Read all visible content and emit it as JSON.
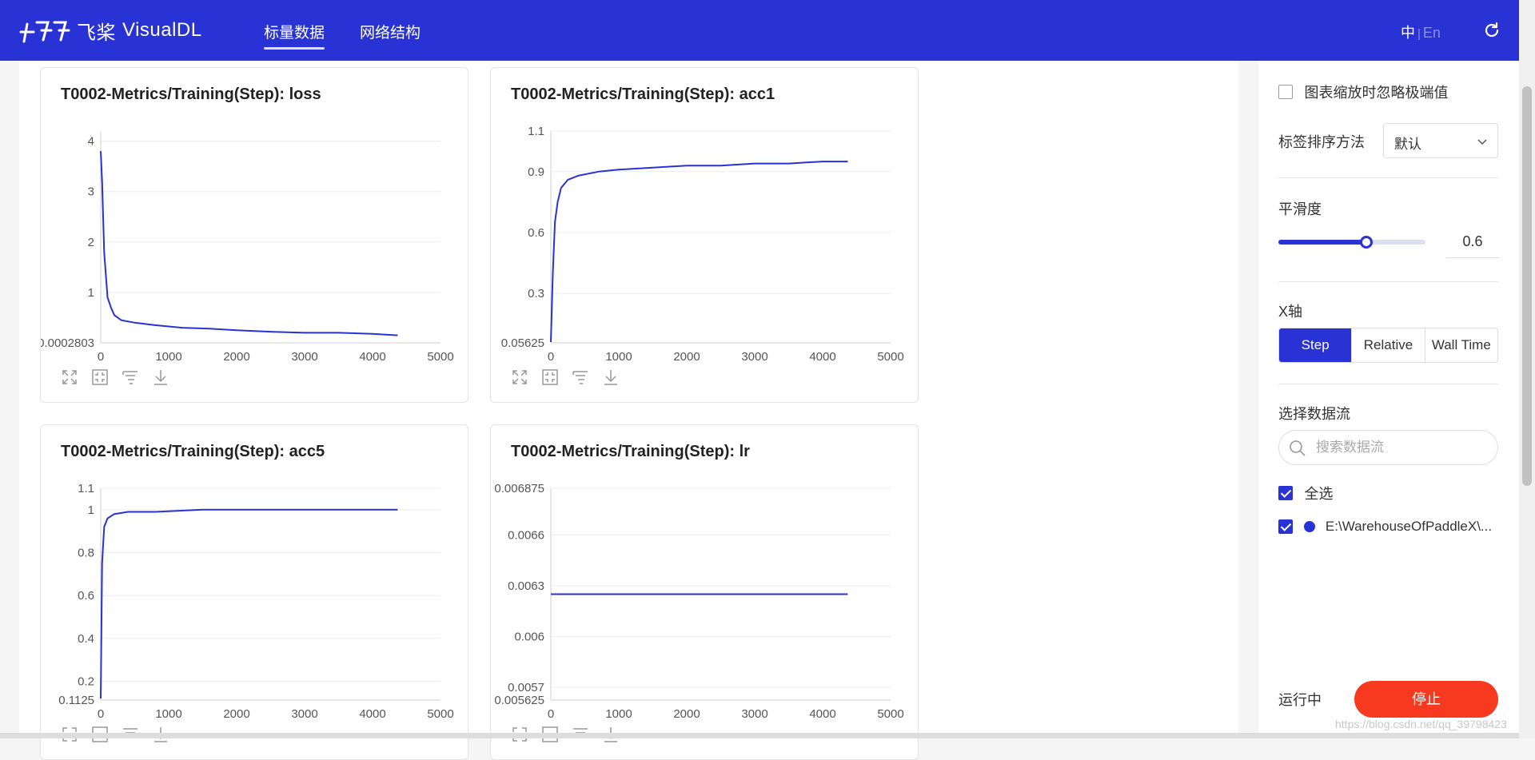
{
  "header": {
    "brand_cn": "飞桨",
    "brand_en": "VisualDL",
    "tabs": [
      {
        "label": "标量数据",
        "active": true
      },
      {
        "label": "网络结构",
        "active": false
      }
    ],
    "lang_zh": "中",
    "lang_sep": "|",
    "lang_en": "En",
    "accent_color": "#2932d4"
  },
  "cards": [
    {
      "title": "T0002-Metrics/Training(Step): loss"
    },
    {
      "title": "T0002-Metrics/Training(Step): acc1"
    },
    {
      "title": "T0002-Metrics/Training(Step): acc5"
    },
    {
      "title": "T0002-Metrics/Training(Step): lr"
    }
  ],
  "chart_data": [
    {
      "type": "line",
      "title": "T0002-Metrics/Training(Step): loss",
      "xlim": [
        0,
        5000
      ],
      "ylim": [
        0.0002803,
        4.2
      ],
      "xticks": [
        "0",
        "1000",
        "2000",
        "3000",
        "4000",
        "5000"
      ],
      "yticks": [
        {
          "v": 4,
          "l": "4"
        },
        {
          "v": 3,
          "l": "3"
        },
        {
          "v": 2,
          "l": "2"
        },
        {
          "v": 1,
          "l": "1"
        },
        {
          "v": 0.0002803,
          "l": "0.0002803"
        }
      ],
      "series": [
        {
          "x": [
            0,
            20,
            50,
            100,
            150,
            200,
            300,
            500,
            800,
            1200,
            1600,
            2000,
            2500,
            3000,
            3500,
            4000,
            4370
          ],
          "y": [
            3.8,
            3.2,
            1.8,
            0.9,
            0.7,
            0.55,
            0.45,
            0.4,
            0.35,
            0.3,
            0.28,
            0.25,
            0.22,
            0.2,
            0.2,
            0.18,
            0.15
          ]
        }
      ]
    },
    {
      "type": "line",
      "title": "T0002-Metrics/Training(Step): acc1",
      "xlim": [
        0,
        5000
      ],
      "ylim": [
        0.05625,
        1.1
      ],
      "xticks": [
        "0",
        "1000",
        "2000",
        "3000",
        "4000",
        "5000"
      ],
      "yticks": [
        {
          "v": 1.1,
          "l": "1.1"
        },
        {
          "v": 0.9,
          "l": "0.9"
        },
        {
          "v": 0.6,
          "l": "0.6"
        },
        {
          "v": 0.3,
          "l": "0.3"
        },
        {
          "v": 0.05625,
          "l": "0.05625"
        }
      ],
      "series": [
        {
          "x": [
            0,
            30,
            60,
            100,
            150,
            250,
            400,
            700,
            1000,
            1500,
            2000,
            2500,
            3000,
            3500,
            4000,
            4370
          ],
          "y": [
            0.06,
            0.4,
            0.65,
            0.75,
            0.82,
            0.86,
            0.88,
            0.9,
            0.91,
            0.92,
            0.93,
            0.93,
            0.94,
            0.94,
            0.95,
            0.95
          ]
        }
      ]
    },
    {
      "type": "line",
      "title": "T0002-Metrics/Training(Step): acc5",
      "xlim": [
        0,
        5000
      ],
      "ylim": [
        0.1125,
        1.1
      ],
      "xticks": [
        "0",
        "1000",
        "2000",
        "3000",
        "4000",
        "5000"
      ],
      "yticks": [
        {
          "v": 1.1,
          "l": "1.1"
        },
        {
          "v": 1,
          "l": "1"
        },
        {
          "v": 0.8,
          "l": "0.8"
        },
        {
          "v": 0.6,
          "l": "0.6"
        },
        {
          "v": 0.4,
          "l": "0.4"
        },
        {
          "v": 0.2,
          "l": "0.2"
        },
        {
          "v": 0.1125,
          "l": "0.1125"
        }
      ],
      "series": [
        {
          "x": [
            0,
            20,
            50,
            100,
            200,
            400,
            800,
            1500,
            2500,
            3500,
            4370
          ],
          "y": [
            0.12,
            0.75,
            0.92,
            0.96,
            0.98,
            0.99,
            0.99,
            1.0,
            1.0,
            1.0,
            1.0
          ]
        }
      ]
    },
    {
      "type": "line",
      "title": "T0002-Metrics/Training(Step): lr",
      "xlim": [
        0,
        5000
      ],
      "ylim": [
        0.005625,
        0.006875
      ],
      "xticks": [
        "0",
        "1000",
        "2000",
        "3000",
        "4000",
        "5000"
      ],
      "yticks": [
        {
          "v": 0.006875,
          "l": "0.006875"
        },
        {
          "v": 0.0066,
          "l": "0.0066"
        },
        {
          "v": 0.0063,
          "l": "0.0063"
        },
        {
          "v": 0.006,
          "l": "0.006"
        },
        {
          "v": 0.0057,
          "l": "0.0057"
        },
        {
          "v": 0.005625,
          "l": "0.005625"
        }
      ],
      "series": [
        {
          "x": [
            0,
            4370
          ],
          "y": [
            0.00625,
            0.00625
          ]
        }
      ]
    }
  ],
  "sidebar": {
    "ignore_outliers": "图表缩放时忽略极端值",
    "sort_label": "标签排序方法",
    "sort_value": "默认",
    "smoothing_label": "平滑度",
    "smoothing_value": "0.6",
    "smoothing_fraction": 0.6,
    "xaxis_label": "X轴",
    "xaxis_options": [
      "Step",
      "Relative",
      "Wall Time"
    ],
    "xaxis_selected": "Step",
    "stream_label": "选择数据流",
    "search_placeholder": "搜索数据流",
    "select_all": "全选",
    "run_name": "E:\\WarehouseOfPaddleX\\...",
    "status": "运行中",
    "stop_label": "停止",
    "stop_color": "#f73a1f"
  },
  "watermark": "https://blog.csdn.net/qq_39798423"
}
